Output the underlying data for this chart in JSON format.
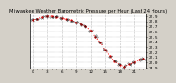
{
  "title": "Milwaukee Weather Barometric Pressure per Hour (Last 24 Hours)",
  "hours": [
    0,
    1,
    2,
    3,
    4,
    5,
    6,
    7,
    8,
    9,
    10,
    11,
    12,
    13,
    14,
    15,
    16,
    17,
    18,
    19,
    20,
    21,
    22,
    23
  ],
  "pressure": [
    29.82,
    29.85,
    29.88,
    29.9,
    29.9,
    29.88,
    29.86,
    29.84,
    29.82,
    29.78,
    29.74,
    29.7,
    29.62,
    29.5,
    29.38,
    29.25,
    29.12,
    29.02,
    28.95,
    28.92,
    28.96,
    29.0,
    29.05,
    29.08
  ],
  "line_color": "#ff0000",
  "marker_color": "#000000",
  "bg_color": "#d4d0c8",
  "plot_bg_color": "#ffffff",
  "grid_color": "#888888",
  "ylim": [
    28.88,
    29.95
  ],
  "yticks": [
    28.9,
    29.0,
    29.1,
    29.2,
    29.3,
    29.4,
    29.5,
    29.6,
    29.7,
    29.8,
    29.9
  ],
  "title_fontsize": 3.8,
  "tick_fontsize": 3.2
}
